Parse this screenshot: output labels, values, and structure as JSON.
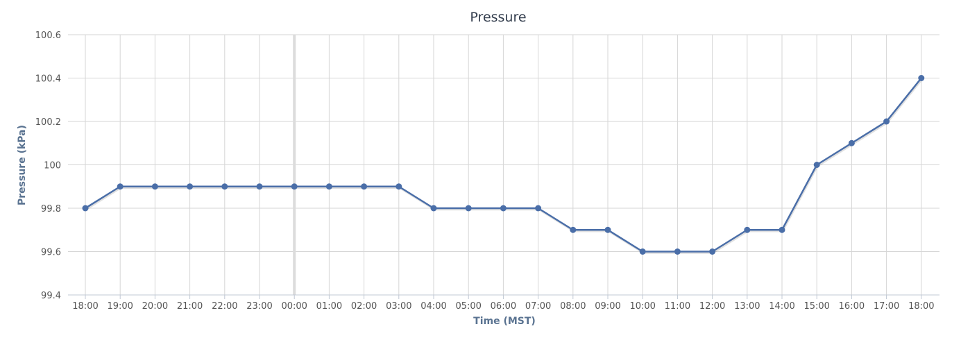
{
  "colors": {
    "series": "#4a6ea8",
    "highlight_band": "#dcdcdc"
  },
  "chart_data": {
    "type": "line",
    "title": "Pressure",
    "xlabel": "Time (MST)",
    "ylabel": "Pressure (kPa)",
    "ylim": [
      99.4,
      100.6
    ],
    "yticks": [
      "99.4",
      "99.6",
      "99.8",
      "100",
      "100.2",
      "100.4",
      "100.6"
    ],
    "categories": [
      "18:00",
      "19:00",
      "20:00",
      "21:00",
      "22:00",
      "23:00",
      "00:00",
      "01:00",
      "02:00",
      "03:00",
      "04:00",
      "05:00",
      "06:00",
      "07:00",
      "08:00",
      "09:00",
      "10:00",
      "11:00",
      "12:00",
      "13:00",
      "14:00",
      "15:00",
      "16:00",
      "17:00",
      "18:00"
    ],
    "series": [
      {
        "values": [
          99.8,
          99.9,
          99.9,
          99.9,
          99.9,
          99.9,
          99.9,
          99.9,
          99.9,
          99.9,
          99.8,
          99.8,
          99.8,
          99.8,
          99.7,
          99.7,
          99.6,
          99.6,
          99.6,
          99.7,
          99.7,
          100.0,
          100.1,
          100.2,
          100.4
        ]
      }
    ],
    "highlight_category": "00:00",
    "grid": true,
    "legend": "none"
  }
}
